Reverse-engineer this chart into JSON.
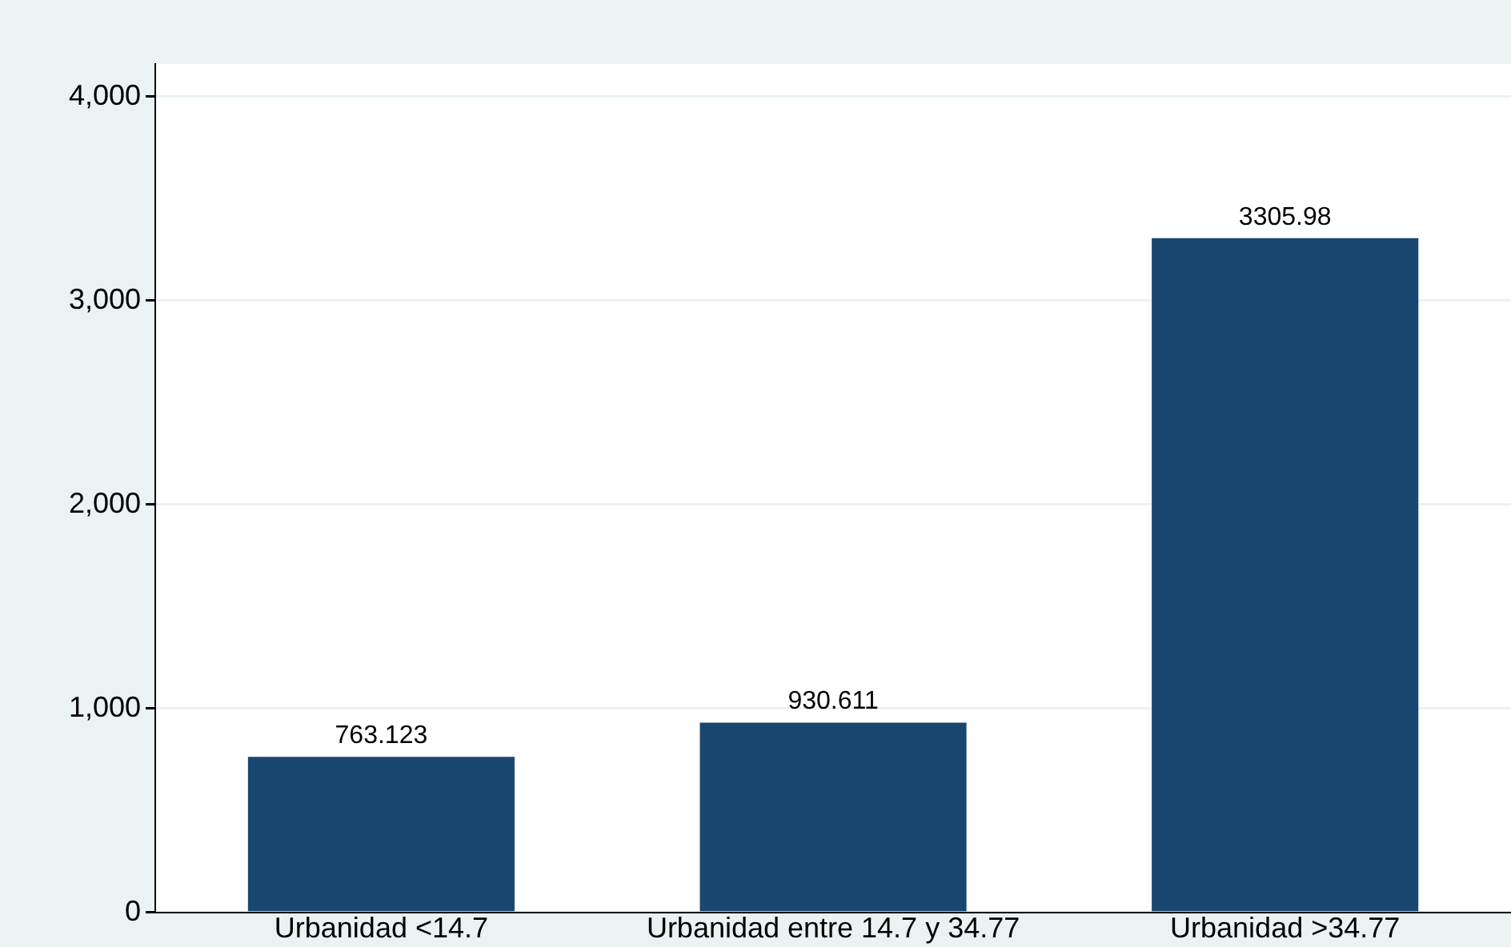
{
  "chart_data": {
    "type": "bar",
    "categories": [
      "Urbanidad <14.7",
      "Urbanidad entre 14.7 y 34.77",
      "Urbanidad >34.77"
    ],
    "values": [
      763.123,
      930.611,
      3305.98
    ],
    "color": "#1a476f",
    "ylim": [
      0,
      4160
    ],
    "yticks": [
      {
        "value": 0,
        "label": "0"
      },
      {
        "value": 1000,
        "label": "1,000"
      },
      {
        "value": 2000,
        "label": "2,000"
      },
      {
        "value": 3000,
        "label": "3,000"
      },
      {
        "value": 4000,
        "label": "4,000"
      }
    ],
    "grid": "y",
    "legend": false,
    "data_labels": true
  }
}
